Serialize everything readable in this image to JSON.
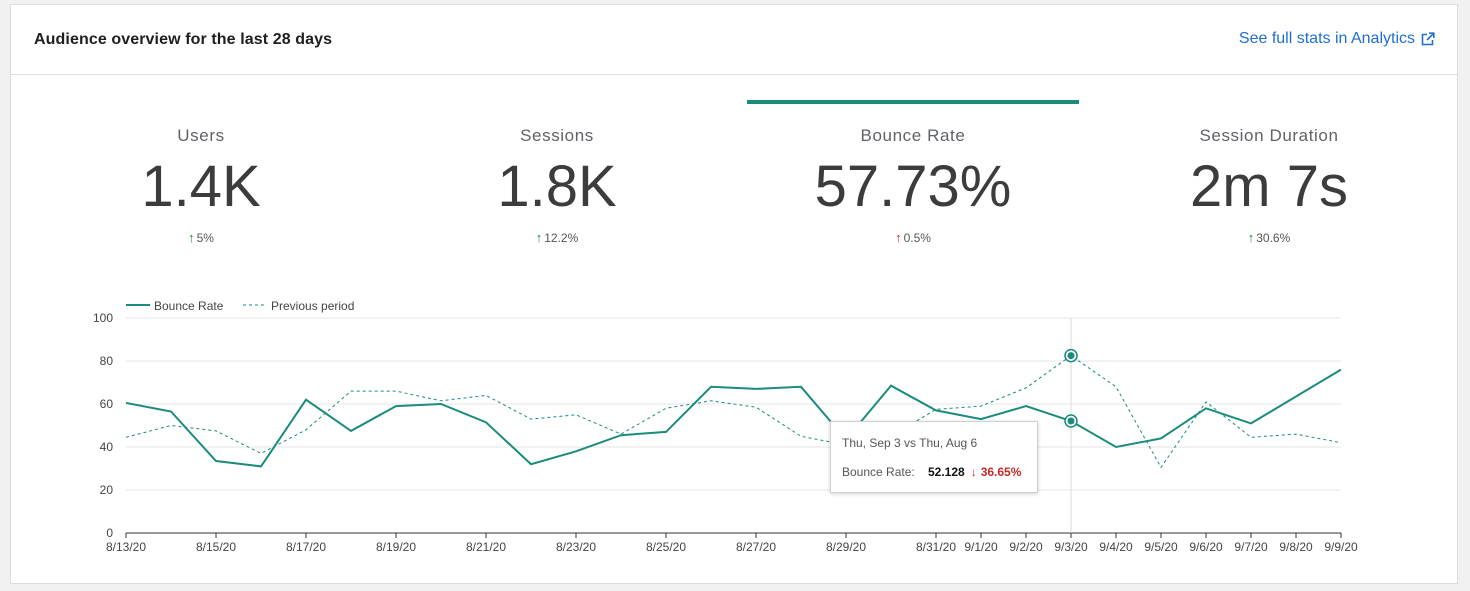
{
  "header": {
    "title": "Audience overview for the last 28 days",
    "link_label": "See full stats in Analytics"
  },
  "metrics": [
    {
      "label": "Users",
      "value": "1.4K",
      "change": "5%",
      "direction": "up",
      "selected": false
    },
    {
      "label": "Sessions",
      "value": "1.8K",
      "change": "12.2%",
      "direction": "up",
      "selected": false
    },
    {
      "label": "Bounce Rate",
      "value": "57.73%",
      "change": "0.5%",
      "direction": "up-bad",
      "selected": true
    },
    {
      "label": "Session Duration",
      "value": "2m 7s",
      "change": "30.6%",
      "direction": "up",
      "selected": false
    }
  ],
  "colors": {
    "accent": "#1a8c7c",
    "positive": "#1a8c3c",
    "negative": "#c62828",
    "link": "#1f6fd1"
  },
  "tooltip": {
    "title": "Thu, Sep 3 vs Thu, Aug 6",
    "label": "Bounce Rate:",
    "value": "52.128",
    "change": "36.65%"
  },
  "chart_data": {
    "type": "line",
    "x": [
      "8/13/20",
      "8/14/20",
      "8/15/20",
      "8/16/20",
      "8/17/20",
      "8/18/20",
      "8/19/20",
      "8/20/20",
      "8/21/20",
      "8/22/20",
      "8/23/20",
      "8/24/20",
      "8/25/20",
      "8/26/20",
      "8/27/20",
      "8/28/20",
      "8/29/20",
      "8/30/20",
      "8/31/20",
      "9/1/20",
      "9/2/20",
      "9/3/20",
      "9/4/20",
      "9/5/20",
      "9/6/20",
      "9/7/20",
      "9/8/20",
      "9/9/20"
    ],
    "x_tick_labels": [
      "8/13/20",
      "8/15/20",
      "8/17/20",
      "8/19/20",
      "8/21/20",
      "8/23/20",
      "8/25/20",
      "8/27/20",
      "8/29/20",
      "8/31/20",
      "9/1/20",
      "9/2/20",
      "9/3/20",
      "9/4/20",
      "9/5/20",
      "9/6/20",
      "9/7/20",
      "9/8/20",
      "9/9/20"
    ],
    "series": [
      {
        "name": "Bounce Rate",
        "style": "solid",
        "values": [
          60.5,
          56.5,
          33.5,
          31,
          62,
          47.5,
          59,
          60,
          51.5,
          32,
          38,
          45.5,
          47,
          68,
          67,
          68,
          43.5,
          68.5,
          57,
          53,
          59,
          52.1,
          40,
          44,
          58,
          51,
          63.5,
          76
        ]
      },
      {
        "name": "Previous period",
        "style": "dashed",
        "values": [
          44.5,
          50,
          47.5,
          37,
          48,
          66,
          66,
          61.5,
          64,
          53,
          55,
          46,
          58,
          61.5,
          58.5,
          45,
          41,
          45,
          57.5,
          59,
          67.5,
          82.5,
          68,
          30.5,
          61,
          44.5,
          46,
          42
        ]
      }
    ],
    "ylim": [
      0,
      100
    ],
    "y_ticks": [
      0,
      20,
      40,
      60,
      80,
      100
    ],
    "highlight_x": "9/3/20",
    "grid": true,
    "legend": "top-left"
  }
}
